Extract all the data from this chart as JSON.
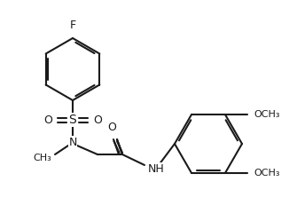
{
  "background_color": "#ffffff",
  "line_color": "#1a1a1a",
  "line_width": 1.5,
  "font_size": 9,
  "figsize": [
    3.26,
    2.49
  ],
  "dpi": 100,
  "labels": {
    "F": "F",
    "S": "S",
    "O": "O",
    "N": "N",
    "NH": "NH",
    "CH3": "CH₃",
    "OCH3": "OCH₃"
  }
}
